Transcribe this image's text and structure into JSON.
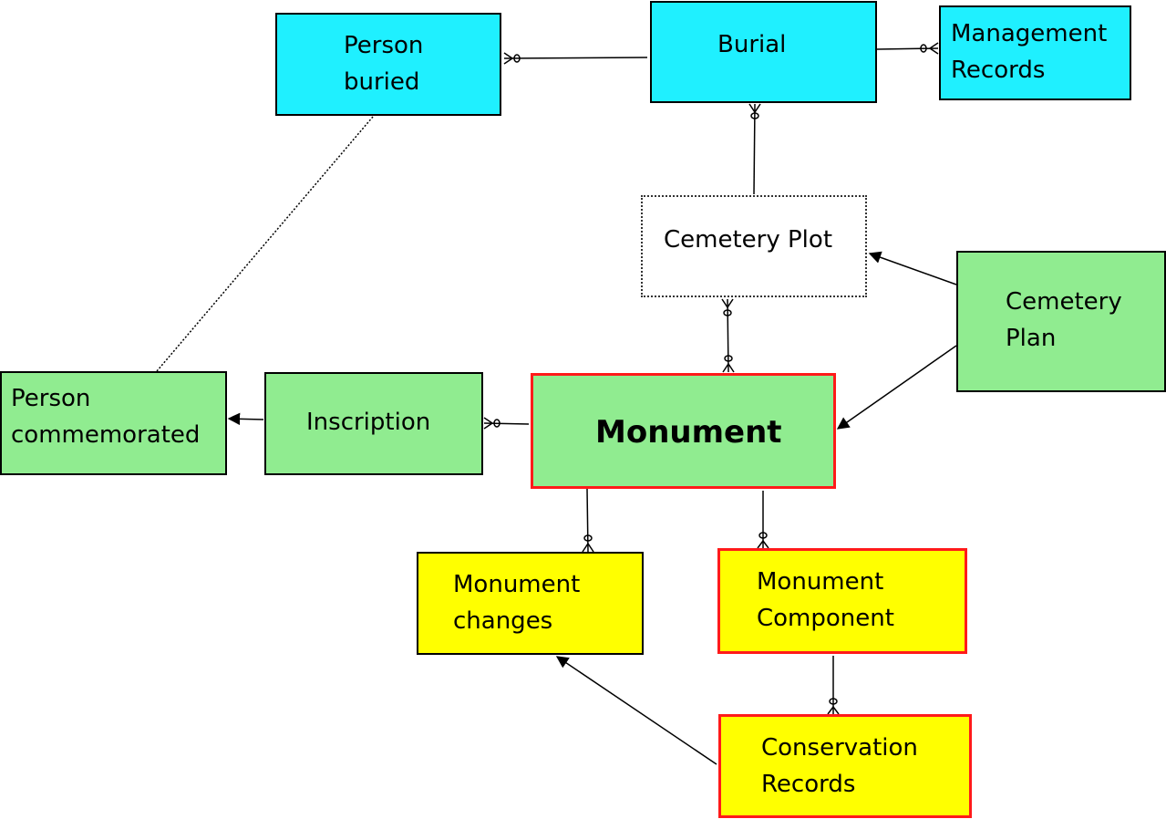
{
  "nodes": {
    "person_buried": "Person\nburied",
    "burial": "Burial",
    "management_records": "Management\nRecords",
    "cemetery_plot": "Cemetery Plot",
    "cemetery_plan": "Cemetery\nPlan",
    "person_commemorated": "Person\ncommemorated",
    "inscription": "Inscription",
    "monument": "Monument",
    "monument_changes": "Monument\nchanges",
    "monument_component": "Monument\nComponent",
    "conservation_records": "Conservation\nRecords"
  },
  "colors": {
    "cyan": "#1ff0ff",
    "green": "#90ec90",
    "yellow": "#ffff00",
    "highlight_border": "#ff1a1a"
  }
}
